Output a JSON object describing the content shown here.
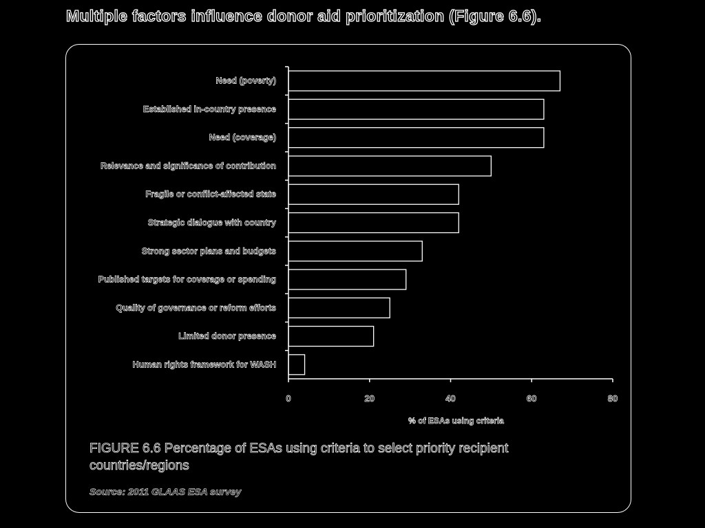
{
  "page": {
    "title": "Multiple factors influence donor aid prioritization (Figure 6.6)."
  },
  "caption": {
    "figure_label": "FIGURE 6.6",
    "text": "Percentage of ESAs using criteria to select priority recipient countries/regions",
    "source": "Source: 2011 GLAAS ESA survey"
  },
  "chart_data": {
    "type": "bar",
    "orientation": "horizontal",
    "categories": [
      "Need (poverty)",
      "Established in-country presence",
      "Need (coverage)",
      "Relevance and significance of contribution",
      "Fragile or conflict-affected state",
      "Strategic dialogue with country",
      "Strong sector plans and budgets",
      "Published targets for coverage or spending",
      "Quality of governance or reform efforts",
      "Limited donor presence",
      "Human rights framework for WASH"
    ],
    "values": [
      67,
      63,
      63,
      50,
      42,
      42,
      33,
      29,
      25,
      21,
      4
    ],
    "xlim": [
      0,
      80
    ],
    "xticks": [
      0,
      20,
      40,
      60,
      80
    ],
    "xlabel": "% of ESAs using criteria",
    "ylabel": "",
    "grid": false,
    "legend": "none"
  }
}
